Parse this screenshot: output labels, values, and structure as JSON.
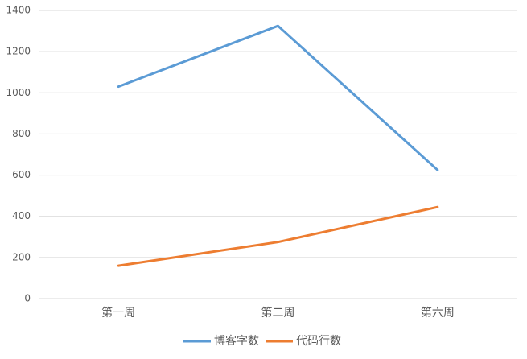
{
  "chart_data": {
    "type": "line",
    "categories": [
      "第一周",
      "第二周",
      "第六周"
    ],
    "series": [
      {
        "name": "博客字数",
        "color": "#5b9bd5",
        "values": [
          1030,
          1325,
          625
        ]
      },
      {
        "name": "代码行数",
        "color": "#ed7d31",
        "values": [
          160,
          275,
          445
        ]
      }
    ],
    "ylim": [
      0,
      1400
    ],
    "yticks": [
      0,
      200,
      400,
      600,
      800,
      1000,
      1200,
      1400
    ],
    "grid": true,
    "legend": "bottom"
  }
}
